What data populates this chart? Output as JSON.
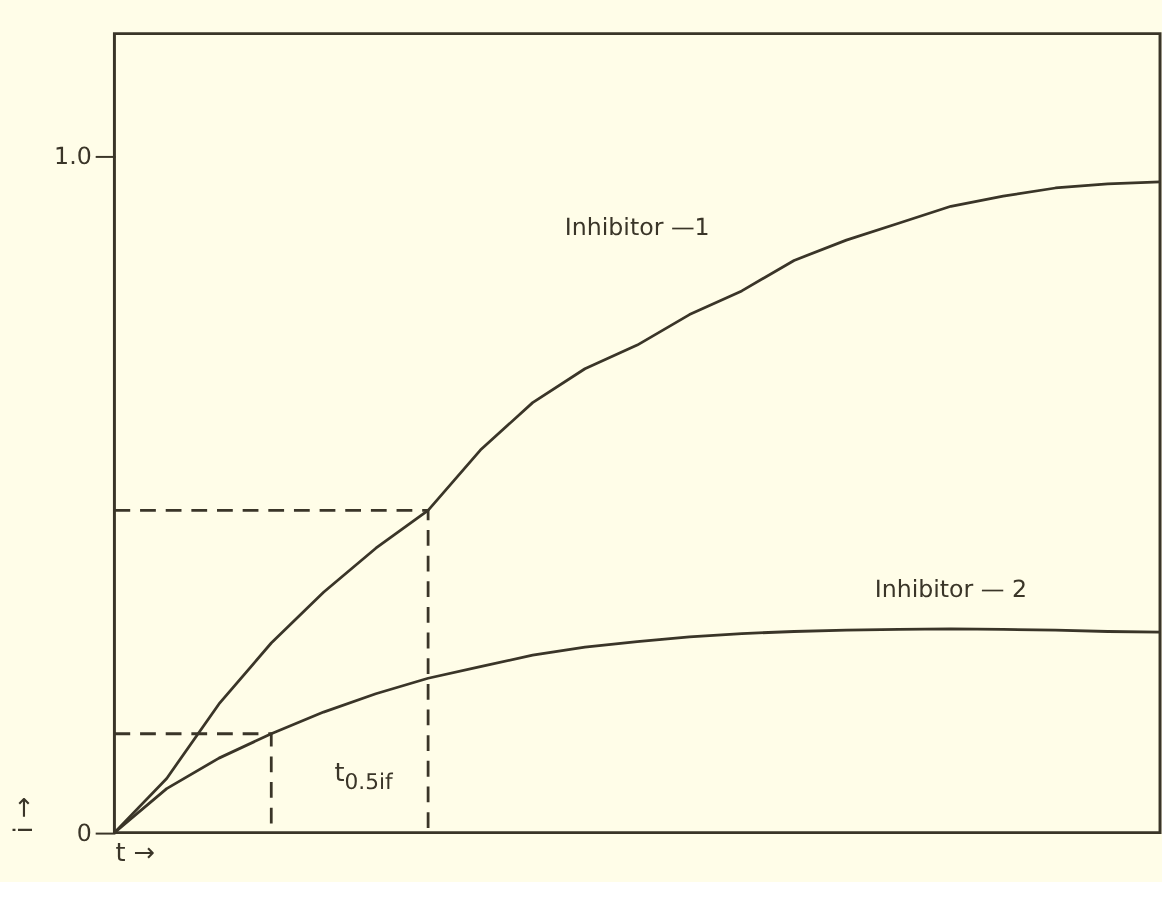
{
  "chart_data": {
    "type": "line",
    "xlabel": "t →",
    "ylabel": "i →",
    "categories": [
      null,
      null,
      null,
      null,
      null,
      null,
      null,
      null,
      null,
      null,
      null,
      null,
      null,
      null,
      null,
      null,
      null,
      null,
      null,
      null,
      null
    ],
    "ylim": [
      0,
      1.18
    ],
    "yticks": [
      0,
      {
        "value": 1,
        "label": "1.0"
      }
    ],
    "tick_labels": "y",
    "grid": false,
    "legend": false,
    "marker": "none",
    "line_style": "solid",
    "annotations": [
      "t$_{0.5if}$"
    ],
    "series": [
      {
        "name": "Inhibitor —1",
        "color": "#3a3528",
        "values": [
          0,
          0.08,
          0.19,
          0.28,
          0.355,
          0.42,
          0.476,
          0.565,
          0.635,
          0.685,
          0.72,
          0.765,
          0.8,
          0.845,
          0.875,
          0.9,
          0.925,
          0.94,
          0.952,
          0.958,
          0.961
        ]
      },
      {
        "name": "Inhibitor — 2",
        "color": "#3a3528",
        "values": [
          0,
          0.065,
          0.11,
          0.146,
          0.178,
          0.205,
          0.228,
          0.245,
          0.262,
          0.274,
          0.282,
          0.289,
          0.294,
          0.297,
          0.299,
          0.3,
          0.301,
          0.3,
          0.299,
          0.297,
          0.296
        ]
      },
      {
        "type": "step",
        "color": "#3a3528",
        "line_style": "dashed",
        "values": [
          0.146,
          0.146,
          0.146,
          0,
          null,
          null,
          null,
          null,
          null,
          null,
          null,
          null,
          null,
          null,
          null,
          null,
          null,
          null,
          null,
          null,
          null
        ]
      },
      {
        "type": "step",
        "color": "#3a3528",
        "line_style": "dashed",
        "values": [
          0.476,
          0.476,
          0.476,
          0.476,
          0.476,
          0.476,
          0,
          null,
          null,
          null,
          null,
          null,
          null,
          null,
          null,
          null,
          null,
          null,
          null,
          null,
          null
        ]
      }
    ]
  }
}
